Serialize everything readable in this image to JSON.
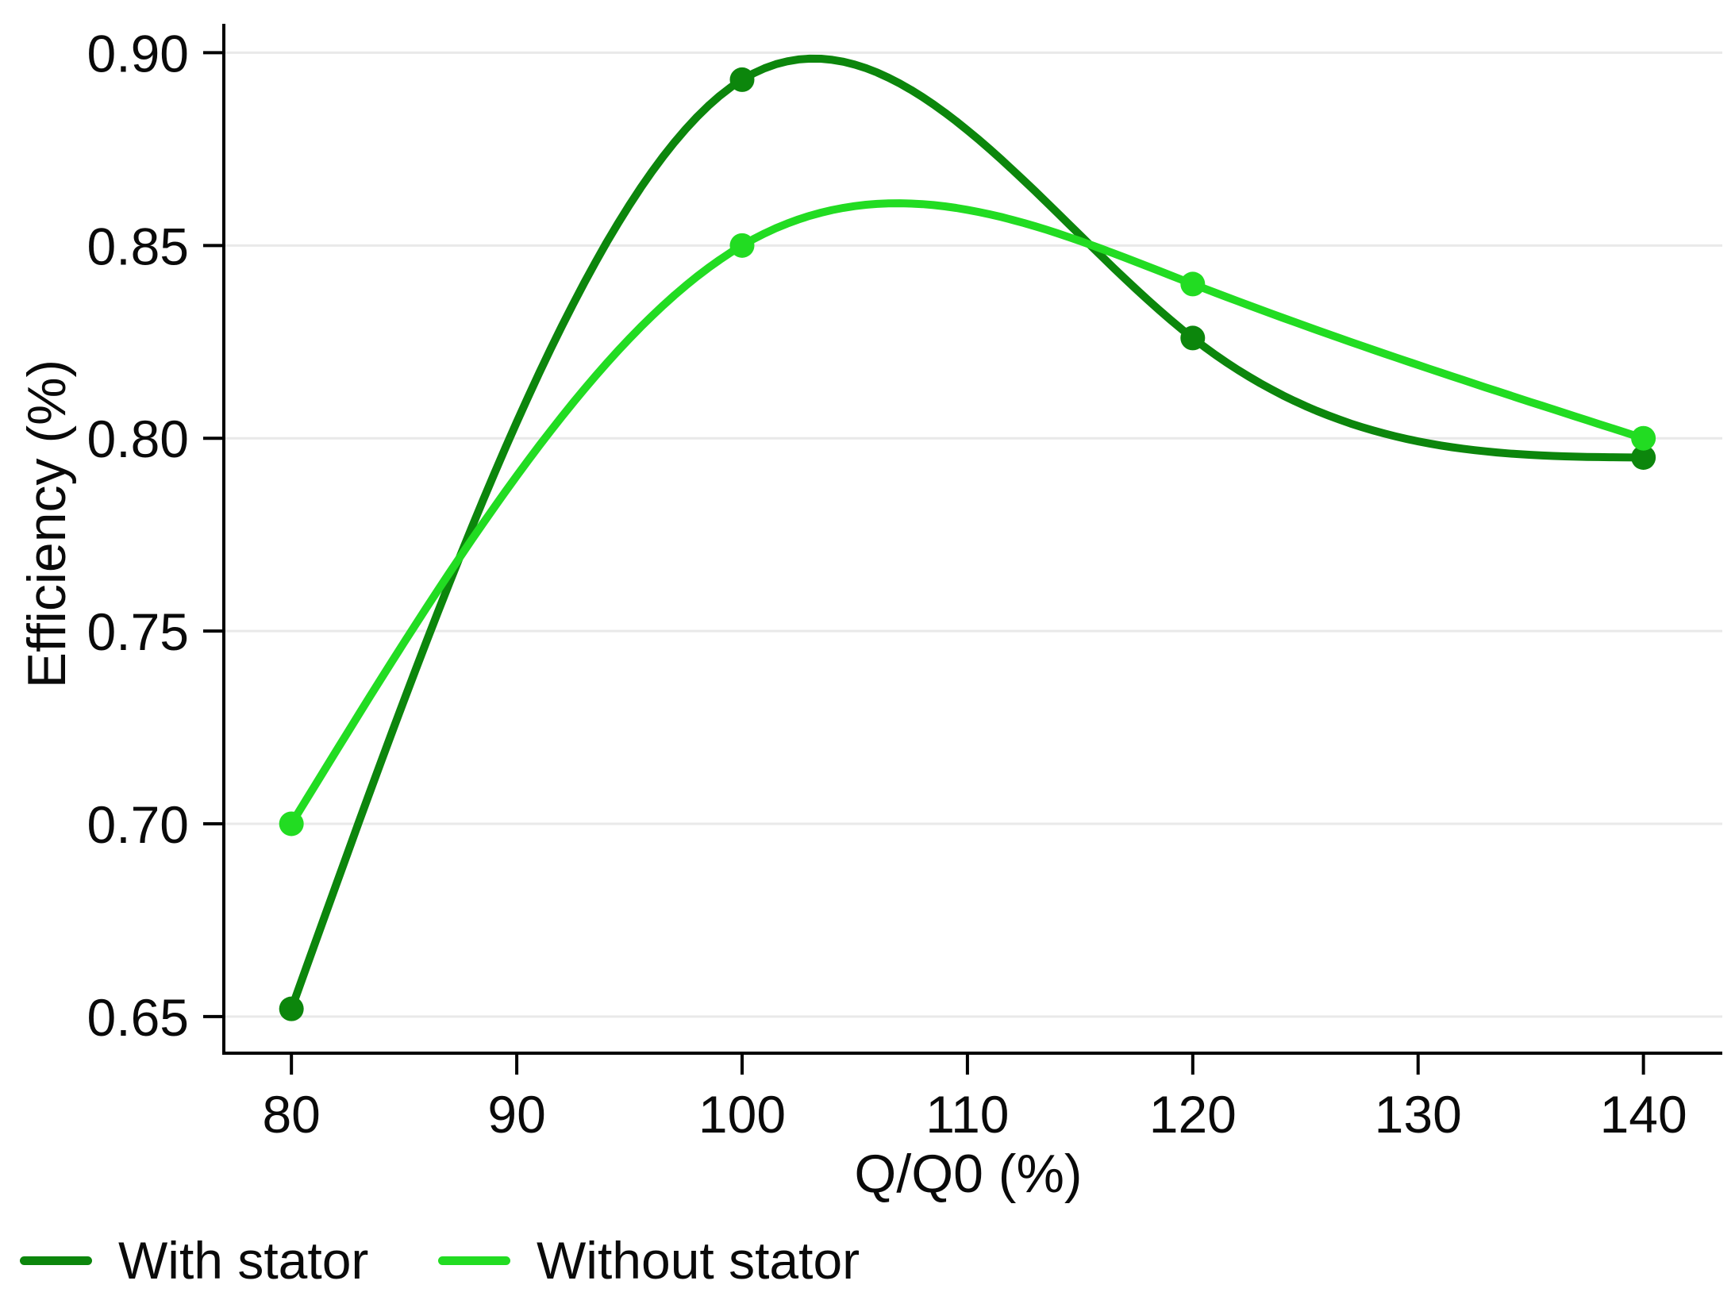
{
  "chart_data": {
    "type": "line",
    "title": "",
    "xlabel": "Q/Q0 (%)",
    "ylabel": "Efficiency (%)",
    "x": [
      80,
      100,
      120,
      140
    ],
    "series": [
      {
        "name": "With stator",
        "color": "#0C860C",
        "values": [
          0.652,
          0.893,
          0.826,
          0.795
        ]
      },
      {
        "name": "Without stator",
        "color": "#22DC22",
        "values": [
          0.7,
          0.85,
          0.84,
          0.8
        ]
      }
    ],
    "x_tick_values": [
      80,
      90,
      100,
      110,
      120,
      130,
      140
    ],
    "x_tick_labels": [
      "80",
      "90",
      "100",
      "110",
      "120",
      "130",
      "140"
    ],
    "y_tick_values": [
      0.65,
      0.7,
      0.75,
      0.8,
      0.85,
      0.9
    ],
    "y_tick_labels": [
      "0.65",
      "0.70",
      "0.75",
      "0.80",
      "0.85",
      "0.90"
    ],
    "xlim": [
      77,
      143.5
    ],
    "ylim": [
      0.6405,
      0.9075
    ],
    "grid": "horizontal-only",
    "legend_position": "bottom-left",
    "interpolation": "natural-cubic-spline",
    "marker": "circle"
  },
  "styles": {
    "background": "#FFFFFF",
    "grid_color": "#E9E9E9",
    "axis_color": "#000000",
    "text_color": "#0A0A0A"
  }
}
